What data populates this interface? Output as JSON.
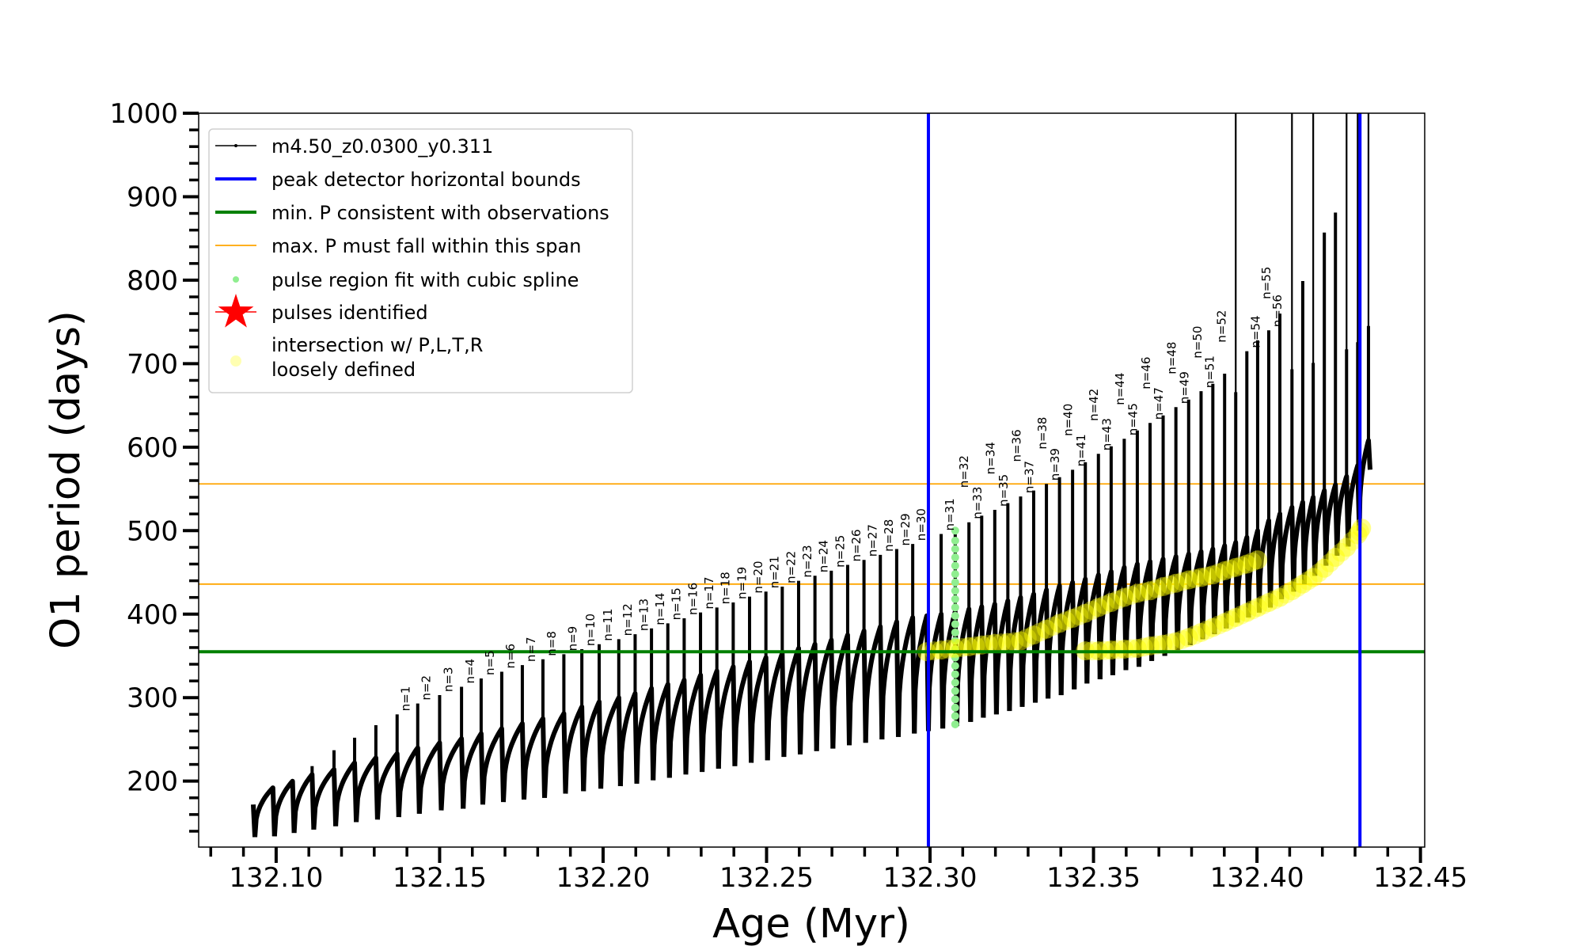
{
  "chart_data": {
    "type": "line",
    "xlabel": "Age (Myr)",
    "ylabel": "O1 period (days)",
    "xlim": [
      132.0763,
      132.4513
    ],
    "ylim": [
      121,
      1000
    ],
    "grid": false,
    "legend_placement": "top-left",
    "x_ticks": [
      {
        "value": 132.1,
        "label": "132.10"
      },
      {
        "value": 132.15,
        "label": "132.15"
      },
      {
        "value": 132.2,
        "label": "132.20"
      },
      {
        "value": 132.25,
        "label": "132.25"
      },
      {
        "value": 132.3,
        "label": "132.30"
      },
      {
        "value": 132.35,
        "label": "132.35"
      },
      {
        "value": 132.4,
        "label": "132.40"
      },
      {
        "value": 132.45,
        "label": "132.45"
      }
    ],
    "y_ticks": [
      {
        "value": 200,
        "label": "200"
      },
      {
        "value": 300,
        "label": "300"
      },
      {
        "value": 400,
        "label": "400"
      },
      {
        "value": 500,
        "label": "500"
      },
      {
        "value": 600,
        "label": "600"
      },
      {
        "value": 700,
        "label": "700"
      },
      {
        "value": 800,
        "label": "800"
      },
      {
        "value": 900,
        "label": "900"
      },
      {
        "value": 1000,
        "label": "1000"
      }
    ],
    "colors": {
      "track": "#000000",
      "peak_bounds": "#0000ff",
      "min_period": "#008000",
      "max_span": "#ffa500",
      "spline": "#90ee90",
      "pulses": "#ff0000",
      "intersection": "#ffff00"
    },
    "reference_lines": {
      "peak_detector_bounds_age": [
        132.2995,
        132.4315
      ],
      "min_period": 355,
      "max_period_span": [
        436,
        556
      ]
    },
    "series": {
      "track": {
        "name": "m4.50_z0.0300_y0.311",
        "start": {
          "age": 132.093,
          "period": 172,
          "trough_age": 132.0935,
          "trough": 133
        },
        "columns": [
          "label",
          "age",
          "pre_pulse_max",
          "spike_peak",
          "post_pulse_min"
        ],
        "rows": [
          [
            null,
            132.099,
            192,
            194,
            134
          ],
          [
            null,
            132.105,
            200,
            200,
            138
          ],
          [
            null,
            132.111,
            208,
            218,
            142
          ],
          [
            null,
            132.1177,
            214,
            237,
            146
          ],
          [
            null,
            132.124,
            222,
            252,
            151
          ],
          [
            null,
            132.1305,
            228,
            267,
            154
          ],
          [
            "n=1",
            132.137,
            233,
            280,
            157
          ],
          [
            "n=2",
            132.1433,
            240,
            293,
            161
          ],
          [
            "n=3",
            132.15,
            246,
            303,
            165
          ],
          [
            "n=4",
            132.1567,
            251,
            313,
            167
          ],
          [
            "n=5",
            132.1627,
            257,
            323,
            172
          ],
          [
            "n=6",
            132.169,
            263,
            331,
            175
          ],
          [
            "n=7",
            132.1753,
            269,
            339,
            178
          ],
          [
            "n=8",
            132.1816,
            275,
            346,
            180
          ],
          [
            "n=9",
            132.188,
            281,
            352,
            185
          ],
          [
            "n=10",
            132.1935,
            289,
            358,
            188
          ],
          [
            "n=11",
            132.1988,
            295,
            364,
            191
          ],
          [
            "n=12",
            132.2048,
            300,
            370,
            194
          ],
          [
            "n=13",
            132.2098,
            305,
            376,
            197
          ],
          [
            "n=14",
            132.2148,
            311,
            383,
            201
          ],
          [
            "n=15",
            132.2198,
            316,
            389,
            204
          ],
          [
            "n=16",
            132.2248,
            321,
            395,
            208
          ],
          [
            "n=17",
            132.2298,
            327,
            402,
            211
          ],
          [
            "n=18",
            132.2348,
            332,
            408,
            215
          ],
          [
            "n=19",
            132.2398,
            337,
            414,
            218
          ],
          [
            "n=20",
            132.2448,
            343,
            421,
            222
          ],
          [
            "n=21",
            132.2498,
            348,
            427,
            225
          ],
          [
            "n=22",
            132.2548,
            353,
            433,
            229
          ],
          [
            "n=23",
            132.2598,
            359,
            440,
            232
          ],
          [
            "n=24",
            132.2648,
            364,
            446,
            236
          ],
          [
            "n=25",
            132.2698,
            369,
            452,
            239
          ],
          [
            "n=26",
            132.2748,
            375,
            459,
            243
          ],
          [
            "n=27",
            132.2798,
            380,
            465,
            246
          ],
          [
            "n=28",
            132.2848,
            385,
            471,
            250
          ],
          [
            "n=29",
            132.2898,
            391,
            478,
            253
          ],
          [
            "n=30",
            132.2947,
            396,
            484,
            257
          ],
          [
            null,
            132.299,
            398,
            400,
            260
          ],
          [
            "n=31",
            132.3034,
            400,
            496,
            263
          ],
          [
            "n=32",
            132.3077,
            403,
            502,
            266
          ],
          [
            "n=33",
            132.3119,
            406,
            510,
            271
          ],
          [
            "n=34",
            132.3158,
            409,
            518,
            276
          ],
          [
            "n=35",
            132.3198,
            412,
            525,
            280
          ],
          [
            "n=36",
            132.3238,
            416,
            533,
            284
          ],
          [
            "n=37",
            132.3277,
            420,
            541,
            289
          ],
          [
            "n=38",
            132.3317,
            424,
            548,
            294
          ],
          [
            "n=39",
            132.3356,
            429,
            556,
            299
          ],
          [
            "n=40",
            132.3396,
            434,
            564,
            303
          ],
          [
            "n=41",
            132.3436,
            438,
            573,
            310
          ],
          [
            "n=42",
            132.3475,
            442,
            582,
            317
          ],
          [
            "n=43",
            132.3515,
            447,
            592,
            322
          ],
          [
            "n=44",
            132.3554,
            451,
            601,
            327
          ],
          [
            "n=45",
            132.3594,
            456,
            610,
            333
          ],
          [
            "n=46",
            132.3634,
            460,
            620,
            337
          ],
          [
            "n=47",
            132.3673,
            463,
            629,
            344
          ],
          [
            "n=48",
            132.3713,
            466,
            638,
            350
          ],
          [
            "n=49",
            132.3752,
            469,
            648,
            357
          ],
          [
            "n=50",
            132.3791,
            472,
            657,
            363
          ],
          [
            "n=51",
            132.3829,
            475,
            667,
            370
          ],
          [
            "n=52",
            132.3865,
            478,
            676,
            376
          ],
          [
            null,
            132.3901,
            482,
            688,
            383
          ],
          [
            null,
            132.3935,
            486,
            1000,
            390
          ],
          [
            "n=54",
            132.3969,
            492,
            715,
            396
          ],
          [
            "n=55",
            132.4002,
            500,
            728,
            402
          ],
          [
            "n=56",
            132.4036,
            512,
            740,
            408
          ],
          [
            null,
            132.407,
            520,
            760,
            418
          ],
          [
            null,
            132.4107,
            528,
            1000,
            427
          ],
          [
            null,
            132.414,
            534,
            799,
            436
          ],
          [
            null,
            132.4172,
            540,
            1000,
            446
          ],
          [
            null,
            132.4206,
            548,
            857,
            458
          ],
          [
            null,
            132.424,
            555,
            881,
            470
          ],
          [
            null,
            132.4274,
            565,
            1000,
            481
          ],
          [
            null,
            132.4308,
            578,
            1000,
            500
          ],
          [
            null,
            132.4341,
            608,
            1000,
            573
          ]
        ]
      },
      "spline_fit": {
        "name": "pulse region fit with cubic spline",
        "age": 132.3077,
        "periods": [
          268,
          278,
          288,
          298,
          308,
          318,
          328,
          338,
          348,
          358,
          368,
          378,
          388,
          398,
          408,
          418,
          428,
          438,
          448,
          458,
          468,
          478,
          488,
          500
        ]
      },
      "intersections": {
        "name": "intersection w/ P,L,T,R loosely defined",
        "bands": [
          [
            [
              132.299,
              355
            ],
            [
              132.3034,
              357
            ],
            [
              132.3077,
              359
            ],
            [
              132.3119,
              361
            ],
            [
              132.3158,
              363
            ],
            [
              132.3198,
              365
            ],
            [
              132.3238,
              366
            ],
            [
              132.3277,
              368
            ],
            [
              132.3317,
              375
            ],
            [
              132.3356,
              382
            ],
            [
              132.3396,
              389
            ],
            [
              132.3436,
              395
            ],
            [
              132.3475,
              401
            ],
            [
              132.3515,
              408
            ],
            [
              132.3554,
              414
            ],
            [
              132.3594,
              420
            ],
            [
              132.3634,
              425
            ],
            [
              132.3673,
              428
            ],
            [
              132.3713,
              433
            ],
            [
              132.3752,
              437
            ],
            [
              132.3791,
              441
            ],
            [
              132.3829,
              444
            ],
            [
              132.3865,
              447
            ],
            [
              132.3901,
              452
            ],
            [
              132.3935,
              456
            ],
            [
              132.3969,
              460
            ],
            [
              132.4002,
              465
            ]
          ],
          [
            [
              132.3475,
              356
            ],
            [
              132.3515,
              356
            ],
            [
              132.3554,
              357
            ],
            [
              132.3594,
              358
            ],
            [
              132.3634,
              359
            ],
            [
              132.3673,
              362
            ],
            [
              132.3713,
              364
            ],
            [
              132.3752,
              367
            ],
            [
              132.3791,
              372
            ],
            [
              132.3829,
              378
            ],
            [
              132.3865,
              384
            ],
            [
              132.3901,
              390
            ],
            [
              132.3935,
              396
            ],
            [
              132.3969,
              402
            ],
            [
              132.4002,
              408
            ],
            [
              132.4036,
              414
            ],
            [
              132.407,
              420
            ],
            [
              132.4107,
              428
            ],
            [
              132.414,
              436
            ],
            [
              132.4172,
              444
            ],
            [
              132.4206,
              455
            ],
            [
              132.424,
              468
            ],
            [
              132.4274,
              480
            ],
            [
              132.4308,
              495
            ],
            [
              132.432,
              503
            ]
          ]
        ]
      }
    },
    "legend": [
      {
        "label": "m4.50_z0.0300_y0.311",
        "marker": "line-dot"
      },
      {
        "label": "peak detector horizontal bounds",
        "marker": "thick-line"
      },
      {
        "label": "min. P consistent with observations",
        "marker": "thick-line"
      },
      {
        "label": "max. P must fall within this span",
        "marker": "thin-line"
      },
      {
        "label": "pulse region fit with cubic spline",
        "marker": "dot"
      },
      {
        "label": "pulses identified",
        "marker": "star"
      },
      {
        "label_lines": [
          "intersection w/ P,L,T,R",
          "loosely defined"
        ],
        "marker": "dot"
      }
    ]
  }
}
